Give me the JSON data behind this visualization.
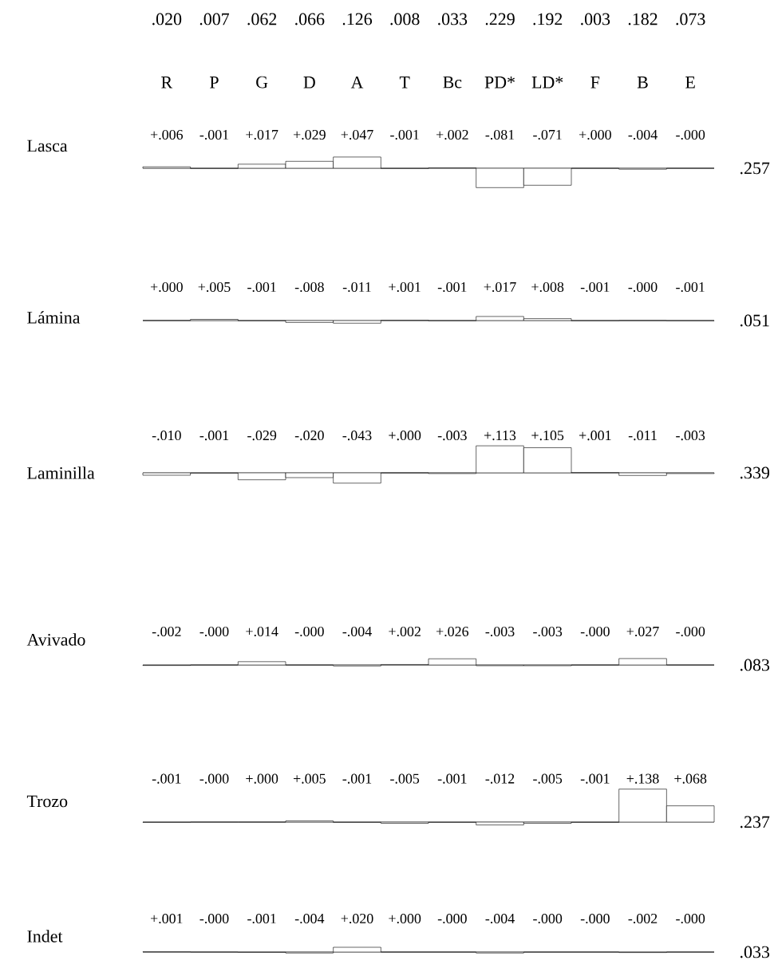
{
  "chart_data": [
    {
      "type": "other",
      "annotations": [
        ".020",
        ".007",
        ".062",
        ".066",
        ".126",
        ".008",
        ".033",
        ".229",
        ".192",
        ".003",
        ".182",
        ".073"
      ]
    },
    {
      "type": "bar",
      "ylabel": "Lasca",
      "annotations": [
        ".257"
      ],
      "color": "#000000",
      "tick_labels": "x",
      "categories": [
        "R",
        "P",
        "G",
        "D",
        "A",
        "T",
        "Bc",
        "PD*",
        "LD*",
        "F",
        "B",
        "E"
      ],
      "values": [
        0.006,
        -0.001,
        0.017,
        0.029,
        0.047,
        -0.001,
        0.002,
        -0.081,
        -0.071,
        0.0,
        -0.004,
        0.0
      ],
      "value_labels": [
        "+.006",
        "-.001",
        "+.017",
        "+.029",
        "+.047",
        "-.001",
        "+.002",
        "-.081",
        "-.071",
        "+.000",
        "-.004",
        "-.000"
      ]
    },
    {
      "type": "bar",
      "ylabel": "Lámina",
      "annotations": [
        ".051"
      ],
      "color": "#000000",
      "tick_labels": false,
      "values": [
        0.0,
        0.005,
        -0.001,
        -0.008,
        -0.011,
        0.001,
        -0.001,
        0.017,
        0.008,
        -0.001,
        0.0,
        -0.001
      ],
      "value_labels": [
        "+.000",
        "+.005",
        "-.001",
        "-.008",
        "-.011",
        "+.001",
        "-.001",
        "+.017",
        "+.008",
        "-.001",
        "-.000",
        "-.001"
      ]
    },
    {
      "type": "bar",
      "ylabel": "Laminilla",
      "annotations": [
        ".339"
      ],
      "color": "#000000",
      "tick_labels": false,
      "values": [
        -0.01,
        -0.001,
        -0.029,
        -0.02,
        -0.043,
        0.0,
        -0.003,
        0.113,
        0.105,
        0.001,
        -0.011,
        -0.003
      ],
      "value_labels": [
        "-.010",
        "-.001",
        "-.029",
        "-.020",
        "-.043",
        "+.000",
        "-.003",
        "+.113",
        "+.105",
        "+.001",
        "-.011",
        "-.003"
      ]
    },
    {
      "type": "bar",
      "ylabel": "Avivado",
      "annotations": [
        ".083"
      ],
      "color": "#000000",
      "tick_labels": false,
      "values": [
        -0.002,
        0.0,
        0.014,
        0.0,
        -0.004,
        0.002,
        0.026,
        -0.003,
        -0.003,
        0.0,
        0.027,
        0.0
      ],
      "value_labels": [
        "-.002",
        "-.000",
        "+.014",
        "-.000",
        "-.004",
        "+.002",
        "+.026",
        "-.003",
        "-.003",
        "-.000",
        "+.027",
        "-.000"
      ]
    },
    {
      "type": "bar",
      "ylabel": "Trozo",
      "annotations": [
        ".237"
      ],
      "color": "#000000",
      "tick_labels": false,
      "values": [
        -0.001,
        0.0,
        0.0,
        0.005,
        -0.001,
        -0.005,
        -0.001,
        -0.012,
        -0.005,
        -0.001,
        0.138,
        0.068
      ],
      "value_labels": [
        "-.001",
        "-.000",
        "+.000",
        "+.005",
        "-.001",
        "-.005",
        "-.001",
        "-.012",
        "-.005",
        "-.001",
        "+.138",
        "+.068"
      ]
    },
    {
      "type": "bar",
      "ylabel": "Indet",
      "annotations": [
        ".033"
      ],
      "color": "#000000",
      "tick_labels": false,
      "values": [
        0.001,
        0.0,
        -0.001,
        -0.004,
        0.02,
        0.0,
        0.0,
        -0.004,
        0.0,
        0.0,
        -0.002,
        0.0
      ],
      "value_labels": [
        "+.001",
        "-.000",
        "-.001",
        "-.004",
        "+.020",
        "+.000",
        "-.000",
        "-.004",
        "-.000",
        "-.000",
        "-.002",
        "-.000"
      ]
    }
  ]
}
